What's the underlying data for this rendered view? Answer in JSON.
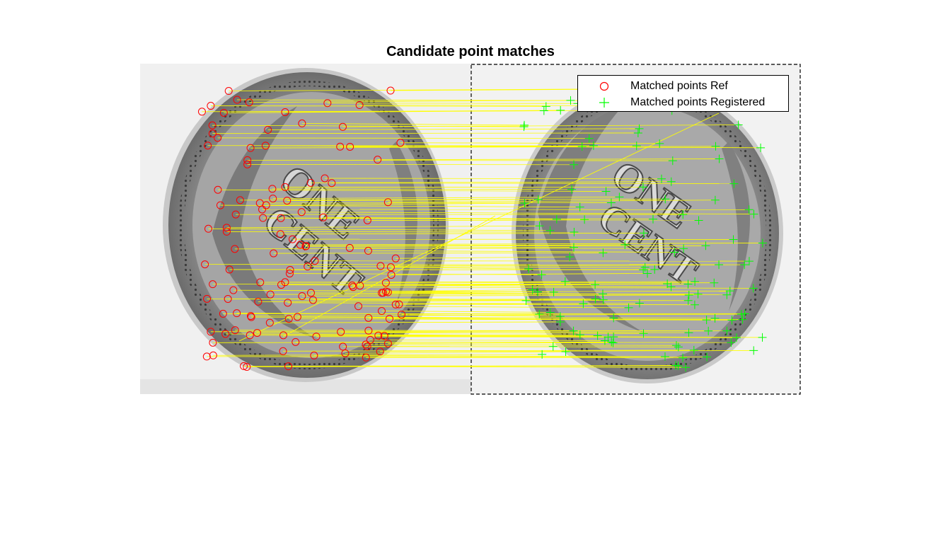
{
  "figure": {
    "title": "Candidate point matches"
  },
  "legend": {
    "entries": [
      {
        "label": "Matched points Ref",
        "marker": "circle",
        "color": "#ff0000"
      },
      {
        "label": "Matched points Registered",
        "marker": "plus",
        "color": "#00ff00"
      }
    ]
  },
  "colors": {
    "match_line": "#ffff00",
    "ref_marker": "#ff0000",
    "registered_marker": "#00ff00",
    "coin_metal": "#9a9a9a",
    "background": "#f2f2f2"
  },
  "icons": [
    "coin-reference-image",
    "coin-registered-image"
  ]
}
